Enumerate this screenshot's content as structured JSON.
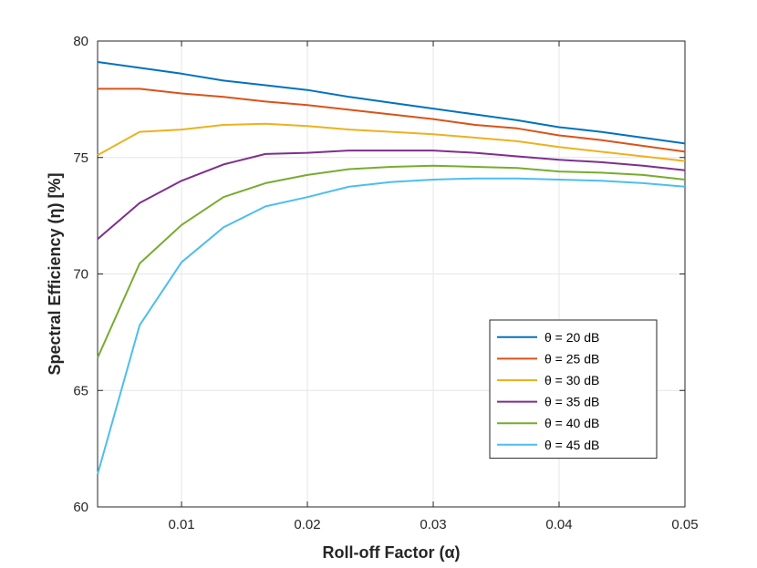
{
  "chart_data": {
    "type": "line",
    "xlabel": "Roll-off Factor (α)",
    "ylabel": "Spectral Efficiency (η) [%]",
    "xlim": [
      0.00333,
      0.05
    ],
    "ylim": [
      60,
      80
    ],
    "xticks": [
      0.01,
      0.02,
      0.03,
      0.04,
      0.05
    ],
    "xtick_labels": [
      "0.01",
      "0.02",
      "0.03",
      "0.04",
      "0.05"
    ],
    "yticks": [
      60,
      65,
      70,
      75,
      80
    ],
    "ytick_labels": [
      "60",
      "65",
      "70",
      "75",
      "80"
    ],
    "grid": true,
    "legend_position": "lower-right",
    "x": [
      0.00333,
      0.00667,
      0.01,
      0.01333,
      0.01667,
      0.02,
      0.02333,
      0.02667,
      0.03,
      0.03333,
      0.03667,
      0.04,
      0.04333,
      0.04667,
      0.05
    ],
    "series": [
      {
        "name": "θ = 20 dB",
        "color": "#0072BD",
        "values": [
          79.1,
          78.85,
          78.6,
          78.3,
          78.1,
          77.9,
          77.6,
          77.35,
          77.1,
          76.85,
          76.6,
          76.3,
          76.1,
          75.85,
          75.6
        ]
      },
      {
        "name": "θ = 25 dB",
        "color": "#D95319",
        "values": [
          77.95,
          77.95,
          77.75,
          77.6,
          77.4,
          77.25,
          77.05,
          76.85,
          76.65,
          76.4,
          76.25,
          75.95,
          75.75,
          75.5,
          75.25
        ]
      },
      {
        "name": "θ = 30 dB",
        "color": "#EDB120",
        "values": [
          75.1,
          76.1,
          76.2,
          76.4,
          76.45,
          76.35,
          76.2,
          76.1,
          76.0,
          75.85,
          75.7,
          75.45,
          75.25,
          75.05,
          74.85
        ]
      },
      {
        "name": "θ = 35 dB",
        "color": "#7E2F8E",
        "values": [
          71.5,
          73.05,
          74.0,
          74.7,
          75.15,
          75.2,
          75.3,
          75.3,
          75.3,
          75.2,
          75.05,
          74.9,
          74.8,
          74.65,
          74.45
        ]
      },
      {
        "name": "θ = 40 dB",
        "color": "#77AC30",
        "values": [
          66.4,
          70.45,
          72.1,
          73.3,
          73.9,
          74.25,
          74.5,
          74.6,
          74.65,
          74.6,
          74.55,
          74.4,
          74.35,
          74.25,
          74.05
        ]
      },
      {
        "name": "θ = 45 dB",
        "color": "#4DBEEE",
        "values": [
          61.4,
          67.8,
          70.5,
          72.0,
          72.9,
          73.3,
          73.75,
          73.95,
          74.05,
          74.1,
          74.1,
          74.05,
          74.0,
          73.9,
          73.75
        ]
      }
    ]
  }
}
